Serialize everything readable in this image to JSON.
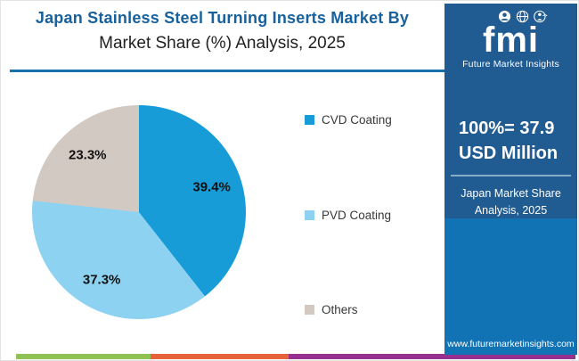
{
  "header": {
    "title_line1": "Japan Stainless Steel Turning Inserts Market By",
    "title_line2": "Market Share (%) Analysis, 2025"
  },
  "chart_data": {
    "type": "pie",
    "title": "Japan Stainless Steel Turning Inserts Market By Market Share (%) Analysis, 2025",
    "start_angle_deg": 0,
    "direction": "clockwise",
    "value_suffix": "%",
    "legend_position": "right",
    "slices": [
      {
        "label": "CVD Coating",
        "value": 39.4,
        "color": "#189cd8"
      },
      {
        "label": "PVD Coating",
        "value": 37.3,
        "color": "#8dd2f0"
      },
      {
        "label": "Others",
        "value": 23.3,
        "color": "#d2c9c3"
      }
    ]
  },
  "sidebar": {
    "logo": {
      "text": "fmi",
      "subtext": "Future Market Insights",
      "icon_names": [
        "person-icon",
        "globe-icon",
        "waving-person-icon"
      ]
    },
    "stat_line1": "100%= 37.9",
    "stat_line2": "USD Million",
    "caption_line1": "Japan Market Share",
    "caption_line2": "Analysis, 2025",
    "website": "www.futuremarketinsights.com",
    "colors": {
      "top_bg": "#205b92",
      "bottom_bg": "#1173b4",
      "divider": "#86abc9"
    }
  },
  "footer": {
    "stripe_colors": [
      "#8fc155",
      "#e7613a",
      "#97308f"
    ]
  },
  "accent": {
    "title_color": "#17619d",
    "underline_color": "#1a72ad"
  }
}
